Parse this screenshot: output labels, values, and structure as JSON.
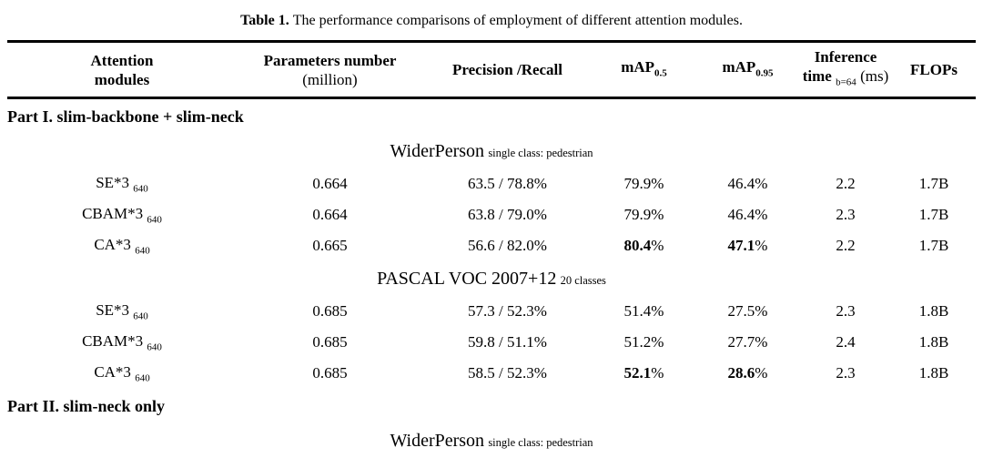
{
  "colors": {
    "background": "#ffffff",
    "text": "#000000",
    "rule": "#000000"
  },
  "caption": {
    "label": "Table 1.",
    "text": "The performance comparisons of employment of different attention modules."
  },
  "header": {
    "attention": {
      "line1": "Attention",
      "line2": "modules"
    },
    "parameters": {
      "line1": "Parameters number",
      "line2": "(million)"
    },
    "precision_recall": "Precision /Recall",
    "map50": {
      "base": "mAP",
      "sub": "0.5"
    },
    "map95": {
      "base": "mAP",
      "sub": "0.95"
    },
    "inference": {
      "line1": "Inference",
      "time": "time",
      "batch": "b=64",
      "unit": "(ms)"
    },
    "flops": "FLOPs"
  },
  "sections": [
    {
      "heading": "Part I. slim-backbone + slim-neck",
      "groups": [
        {
          "dataset": "WiderPerson",
          "dataset_note": "single class: pedestrian",
          "rows": [
            {
              "module": "SE*3",
              "module_sub": "640",
              "params": "0.664",
              "precision_recall": "63.5 / 78.8%",
              "map50": "79.9%",
              "map50_bold": false,
              "map95": "46.4%",
              "map95_bold": false,
              "inference_time": "2.2",
              "flops": "1.7B"
            },
            {
              "module": "CBAM*3",
              "module_sub": "640",
              "params": "0.664",
              "precision_recall": "63.8 / 79.0%",
              "map50": "79.9%",
              "map50_bold": false,
              "map95": "46.4%",
              "map95_bold": false,
              "inference_time": "2.3",
              "flops": "1.7B"
            },
            {
              "module": "CA*3",
              "module_sub": "640",
              "params": "0.665",
              "precision_recall": "56.6 / 82.0%",
              "map50": "80.4%",
              "map50_bold": true,
              "map95": "47.1%",
              "map95_bold": true,
              "inference_time": "2.2",
              "flops": "1.7B"
            }
          ]
        },
        {
          "dataset": "PASCAL VOC 2007+12",
          "dataset_note": "20 classes",
          "rows": [
            {
              "module": "SE*3",
              "module_sub": "640",
              "params": "0.685",
              "precision_recall": "57.3 / 52.3%",
              "map50": "51.4%",
              "map50_bold": false,
              "map95": "27.5%",
              "map95_bold": false,
              "inference_time": "2.3",
              "flops": "1.8B"
            },
            {
              "module": "CBAM*3",
              "module_sub": "640",
              "params": "0.685",
              "precision_recall": "59.8 / 51.1%",
              "map50": "51.2%",
              "map50_bold": false,
              "map95": "27.7%",
              "map95_bold": false,
              "inference_time": "2.4",
              "flops": "1.8B"
            },
            {
              "module": "CA*3",
              "module_sub": "640",
              "params": "0.685",
              "precision_recall": "58.5 / 52.3%",
              "map50": "52.1%",
              "map50_bold": true,
              "map95": "28.6%",
              "map95_bold": true,
              "inference_time": "2.3",
              "flops": "1.8B"
            }
          ]
        }
      ]
    },
    {
      "heading": "Part II. slim-neck only",
      "groups": [
        {
          "dataset": "WiderPerson",
          "dataset_note": "single class: pedestrian",
          "rows": []
        }
      ]
    }
  ]
}
